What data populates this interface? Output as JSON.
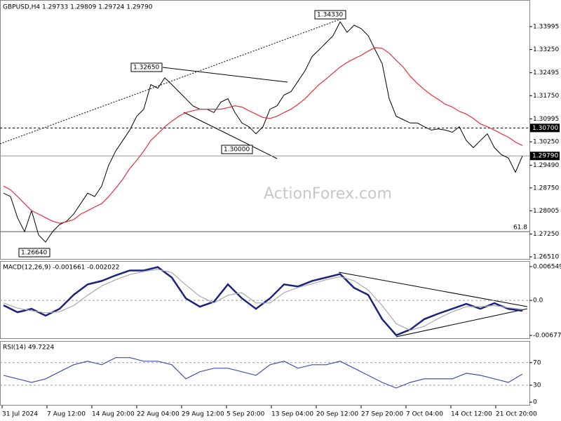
{
  "chart_data": [
    {
      "type": "line",
      "title": "GBPUSD,H4  1.29733 1.29809 1.29724 1.29790",
      "watermark": "ActionForex.com",
      "x": [
        0,
        1,
        2,
        3,
        4,
        5,
        6,
        7,
        8,
        9,
        10,
        11,
        12,
        13,
        14,
        15,
        16,
        17,
        18,
        19,
        20,
        21,
        22,
        23,
        24,
        25,
        26,
        27,
        28,
        29,
        30,
        31,
        32,
        33,
        34,
        35,
        36,
        37,
        38,
        39,
        40,
        41,
        42,
        43,
        44,
        45,
        46,
        47,
        48,
        49,
        50,
        51,
        52,
        53,
        54,
        55,
        56,
        57,
        58,
        59,
        60,
        61,
        62,
        63,
        64,
        65,
        66,
        67,
        68,
        69,
        70,
        71,
        72,
        73,
        74
      ],
      "series": [
        {
          "color": "#000000",
          "values": [
            1.2858,
            1.2847,
            1.2778,
            1.2733,
            1.2801,
            1.2722,
            1.2699,
            1.2733,
            1.2756,
            1.2767,
            1.279,
            1.2824,
            1.2858,
            1.2847,
            1.2881,
            1.2949,
            1.2995,
            1.3029,
            1.3063,
            1.3108,
            1.3131,
            1.3211,
            1.3199,
            1.3233,
            1.3211,
            1.3188,
            1.3165,
            1.3142,
            1.3131,
            1.3131,
            1.312,
            1.3154,
            1.3165,
            1.312,
            1.3086,
            1.3074,
            1.3051,
            1.3074,
            1.3131,
            1.3142,
            1.3177,
            1.3188,
            1.3222,
            1.3256,
            1.3302,
            1.3324,
            1.3347,
            1.337,
            1.3415,
            1.3381,
            1.3404,
            1.3393,
            1.337,
            1.3324,
            1.3279,
            1.3165,
            1.3108,
            1.3097,
            1.3086,
            1.3086,
            1.3074,
            1.3063,
            1.3067,
            1.3063,
            1.3056,
            1.3074,
            1.3029,
            1.3006,
            1.3029,
            1.3051,
            1.3006,
            1.2983,
            1.2972,
            1.2926,
            1.2979
          ]
        },
        {
          "color": "#e8303a",
          "values": [
            1.2881,
            1.2869,
            1.2847,
            1.2824,
            1.2801,
            1.279,
            1.2778,
            1.2767,
            1.276,
            1.2765,
            1.2772,
            1.279,
            1.2801,
            1.2813,
            1.2824,
            1.2847,
            1.2874,
            1.2903,
            1.2938,
            1.2965,
            1.2995,
            1.3029,
            1.3051,
            1.3074,
            1.3092,
            1.3108,
            1.312,
            1.3126,
            1.3131,
            1.3131,
            1.3131,
            1.3131,
            1.3136,
            1.3142,
            1.3138,
            1.3126,
            1.3115,
            1.3104,
            1.3101,
            1.3108,
            1.312,
            1.3131,
            1.3147,
            1.3165,
            1.3188,
            1.3211,
            1.3229,
            1.3249,
            1.3268,
            1.3283,
            1.3295,
            1.3306,
            1.332,
            1.3331,
            1.3329,
            1.3313,
            1.329,
            1.3268,
            1.3238,
            1.3215,
            1.3195,
            1.3177,
            1.3163,
            1.3147,
            1.3138,
            1.3124,
            1.3115,
            1.3101,
            1.3083,
            1.3074,
            1.3063,
            1.3051,
            1.304,
            1.3024,
            1.3013
          ]
        }
      ],
      "xlim": [
        -0.5,
        75
      ],
      "xticks": [
        {
          "value": -0.2,
          "label": "31 Jul 2024"
        },
        {
          "value": 6.2,
          "label": "7 Aug 12:00"
        },
        {
          "value": 12.6,
          "label": "14 Aug 20:00"
        },
        {
          "value": 19,
          "label": "22 Aug 04:00"
        },
        {
          "value": 25.4,
          "label": "29 Aug 12:00"
        },
        {
          "value": 31.8,
          "label": "5 Sep 20:00"
        },
        {
          "value": 38.2,
          "label": "13 Sep 04:00"
        },
        {
          "value": 44.6,
          "label": "20 Sep 12:00"
        },
        {
          "value": 51,
          "label": "27 Sep 20:00"
        },
        {
          "value": 57.4,
          "label": "7 Oct 04:00"
        },
        {
          "value": 63.8,
          "label": "14 Oct 12:00"
        },
        {
          "value": 70.2,
          "label": "21 Oct 20:00"
        }
      ],
      "ylim": [
        1.26419,
        1.34837
      ],
      "yticks": [
        1.33995,
        {
          "value": 1.3325,
          "label": "1.33250"
        },
        1.32495,
        {
          "value": 1.3175,
          "label": "1.31750"
        },
        1.30995,
        {
          "value": 1.3025,
          "label": "1.30250"
        },
        {
          "value": 1.2949,
          "label": "1.29490"
        },
        {
          "value": 1.2875,
          "label": "1.28750"
        },
        1.28005,
        {
          "value": 1.2725,
          "label": "1.27250"
        },
        {
          "value": 1.2651,
          "label": "1.26510"
        }
      ],
      "price_markers": [
        {
          "value": 1.307,
          "label": "1.30700"
        },
        {
          "value": 1.2979,
          "label": "1.29790"
        }
      ],
      "level_lines": [
        {
          "value": 1.2733,
          "label": "61.8"
        }
      ],
      "annotations": [
        "1.32650",
        "1.30000",
        "1.34330",
        "1.26640"
      ]
    },
    {
      "type": "line",
      "title": "MACD(12,26,9) -0.001661 -0.002022",
      "x": [
        0,
        2,
        4,
        6,
        8,
        10,
        12,
        14,
        16,
        18,
        20,
        22,
        24,
        26,
        28,
        30,
        32,
        34,
        36,
        38,
        40,
        42,
        44,
        46,
        48,
        50,
        52,
        54,
        56,
        58,
        60,
        62,
        64,
        66,
        68,
        70,
        72,
        74
      ],
      "series": [
        {
          "color": "#1a237e",
          "values": [
            -0.00094,
            -0.00229,
            -0.00162,
            -0.00296,
            -0.00162,
            0.00108,
            0.0031,
            0.00377,
            0.00485,
            0.00579,
            0.00579,
            0.00646,
            0.00444,
            0.0004,
            -0.00121,
            -0.00027,
            0.0031,
            0.0004,
            -0.00162,
            0.0004,
            0.0031,
            0.00269,
            0.00377,
            0.00444,
            0.00512,
            0.00242,
            0.00108,
            -0.00363,
            -0.00673,
            -0.00565,
            -0.00363,
            -0.00256,
            -0.00162,
            -0.00067,
            -0.00162,
            -0.00054,
            -0.00162,
            -0.00202
          ]
        },
        {
          "color": "#a8a8a8",
          "values": [
            -0.0005,
            -0.0015,
            -0.002,
            -0.0024,
            -0.0022,
            -0.001,
            0.001,
            0.0028,
            0.004,
            0.005,
            0.0056,
            0.006,
            0.0054,
            0.003,
            0.0008,
            -0.0005,
            0.001,
            0.0015,
            -0.0005,
            -0.0005,
            0.0015,
            0.0025,
            0.0032,
            0.004,
            0.0046,
            0.0038,
            0.002,
            -0.001,
            -0.0045,
            -0.0058,
            -0.005,
            -0.0035,
            -0.0022,
            -0.0012,
            -0.0012,
            -0.001,
            -0.0014,
            -0.0017
          ]
        }
      ],
      "xlim": [
        -0.5,
        75
      ],
      "ylim": [
        -0.007451,
        0.007491
      ],
      "yticks": [
        0.006549,
        {
          "value": 0,
          "label": "0.0"
        },
        -0.006778
      ],
      "levels": [
        0
      ]
    },
    {
      "type": "line",
      "title": "RSI(14) 49.7224",
      "x": [
        0,
        2,
        4,
        6,
        8,
        10,
        12,
        14,
        16,
        18,
        20,
        22,
        24,
        26,
        28,
        30,
        32,
        34,
        36,
        38,
        40,
        42,
        44,
        46,
        48,
        50,
        52,
        54,
        56,
        58,
        60,
        62,
        64,
        66,
        68,
        70,
        72,
        74
      ],
      "series": [
        {
          "color": "#3f51b5",
          "values": [
            47.5,
            41.3,
            35,
            41.3,
            53.8,
            66.3,
            72.5,
            66.3,
            78.8,
            78.8,
            72.5,
            72.5,
            66.3,
            41.3,
            53.8,
            60,
            60,
            53.8,
            47.5,
            66.3,
            72.5,
            60,
            66.3,
            66.3,
            72.5,
            60,
            47.5,
            35,
            25,
            35,
            41.3,
            41.3,
            41.3,
            51.3,
            47.5,
            41.3,
            35,
            49.7
          ]
        }
      ],
      "xlim": [
        -0.5,
        75
      ],
      "ylim": [
        -6,
        107
      ],
      "yticks": [
        70,
        30,
        0
      ],
      "levels": [
        70,
        30
      ]
    }
  ]
}
